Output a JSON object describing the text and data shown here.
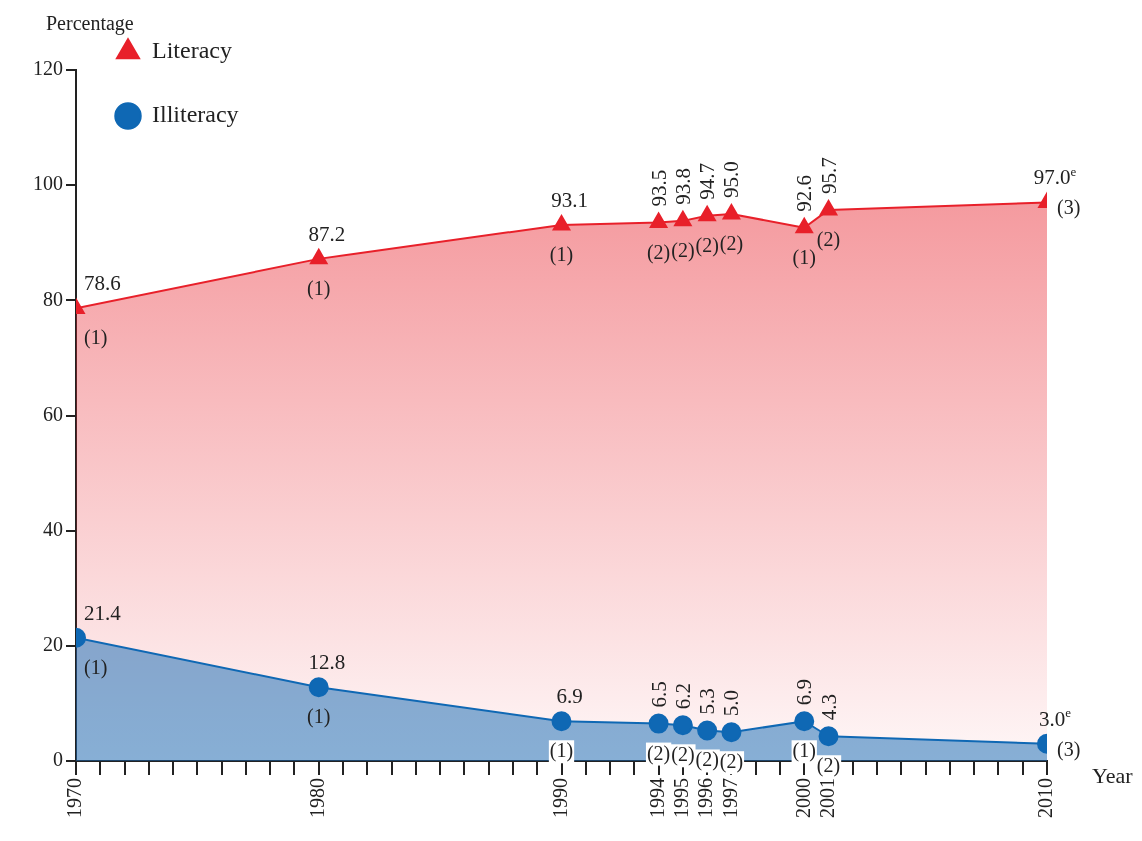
{
  "chart_data": {
    "type": "area",
    "ylabel": "Percentage",
    "xlabel": "Year",
    "x": [
      1970,
      1980,
      1990,
      1994,
      1995,
      1996,
      1997,
      2000,
      2001,
      2010
    ],
    "series": [
      {
        "name": "Literacy",
        "color": "#e8202a",
        "marker": "triangle",
        "values": [
          78.6,
          87.2,
          93.1,
          93.5,
          93.8,
          94.7,
          95.0,
          92.6,
          95.7,
          97.0
        ],
        "value_labels": [
          "78.6",
          "87.2",
          "93.1",
          "93.5",
          "93.8",
          "94.7",
          "95.0",
          "92.6",
          "95.7",
          "97.0$^{e}$"
        ]
      },
      {
        "name": "Illiteracy",
        "color": "#0f68b4",
        "marker": "circle",
        "values": [
          21.4,
          12.8,
          6.9,
          6.5,
          6.2,
          5.3,
          5.0,
          6.9,
          4.3,
          3.0
        ],
        "value_labels": [
          "21.4",
          "12.8",
          "6.9",
          "6.5",
          "6.2",
          "5.3",
          "5.0",
          "6.9",
          "4.3",
          "3.0$^{e}$"
        ]
      }
    ],
    "xlim": [
      1970,
      2010
    ],
    "xticks": [
      1970,
      {
        "value": 1971,
        "label": null
      },
      {
        "value": 1972,
        "label": null
      },
      {
        "value": 1973,
        "label": null
      },
      {
        "value": 1974,
        "label": null
      },
      {
        "value": 1975,
        "label": null
      },
      {
        "value": 1976,
        "label": null
      },
      {
        "value": 1977,
        "label": null
      },
      {
        "value": 1978,
        "label": null
      },
      {
        "value": 1979,
        "label": null
      },
      1980,
      {
        "value": 1981,
        "label": null
      },
      {
        "value": 1982,
        "label": null
      },
      {
        "value": 1983,
        "label": null
      },
      {
        "value": 1984,
        "label": null
      },
      {
        "value": 1985,
        "label": null
      },
      {
        "value": 1986,
        "label": null
      },
      {
        "value": 1987,
        "label": null
      },
      {
        "value": 1988,
        "label": null
      },
      {
        "value": 1989,
        "label": null
      },
      1990,
      {
        "value": 1991,
        "label": null
      },
      {
        "value": 1992,
        "label": null
      },
      {
        "value": 1993,
        "label": null
      },
      1994,
      1995,
      1996,
      1997,
      {
        "value": 1998,
        "label": null
      },
      {
        "value": 1999,
        "label": null
      },
      2000,
      2001,
      {
        "value": 2002,
        "label": null
      },
      {
        "value": 2003,
        "label": null
      },
      {
        "value": 2004,
        "label": null
      },
      {
        "value": 2005,
        "label": null
      },
      {
        "value": 2006,
        "label": null
      },
      {
        "value": 2007,
        "label": null
      },
      {
        "value": 2008,
        "label": null
      },
      {
        "value": 2009,
        "label": null
      },
      2010
    ],
    "ylim": [
      0,
      120
    ],
    "yticks": [
      0,
      20,
      40,
      60,
      80,
      100,
      120
    ],
    "grid": false,
    "legend": "top left",
    "annotations": [
      {
        "text": "(1)",
        "x": 1970,
        "y": 78.6
      },
      {
        "text": "(1)",
        "x": 1980,
        "y": 87.2
      },
      {
        "text": "(1)",
        "x": 1990,
        "y": 93.1
      },
      {
        "text": "(2)",
        "x": 1994,
        "y": 93.5
      },
      {
        "text": "(2)",
        "x": 1995,
        "y": 93.8
      },
      {
        "text": "(2)",
        "x": 1996,
        "y": 94.7
      },
      {
        "text": "(2)",
        "x": 1997,
        "y": 95.0
      },
      {
        "text": "(1)",
        "x": 2000,
        "y": 92.6
      },
      {
        "text": "(2)",
        "x": 2001,
        "y": 95.7
      },
      {
        "text": "(3)",
        "x": 2010,
        "y": 97.0
      },
      {
        "text": "(1)",
        "x": 1970,
        "y": 21.4
      },
      {
        "text": "(1)",
        "x": 1980,
        "y": 12.8
      },
      {
        "text": "(1)",
        "x": 1990,
        "y": 6.9
      },
      {
        "text": "(2)",
        "x": 1994,
        "y": 6.5
      },
      {
        "text": "(2)",
        "x": 1995,
        "y": 6.2
      },
      {
        "text": "(2)",
        "x": 1996,
        "y": 5.3
      },
      {
        "text": "(2)",
        "x": 1997,
        "y": 5.0
      },
      {
        "text": "(1)",
        "x": 2000,
        "y": 6.9
      },
      {
        "text": "(2)",
        "x": 2001,
        "y": 4.3
      },
      {
        "text": "(3)",
        "x": 2010,
        "y": 3.0
      }
    ]
  }
}
